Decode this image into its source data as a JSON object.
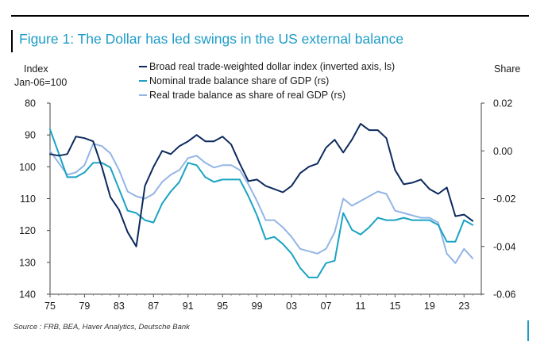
{
  "title": "Figure 1: The Dollar has led swings in the US external balance",
  "source": "Source : FRB, BEA, Haver Analytics, Deutsche Bank",
  "chart_data": {
    "type": "line",
    "left_axis": {
      "label_line1": "Index",
      "label_line2": "Jan-06=100",
      "inverted": true,
      "range": [
        80,
        140
      ],
      "ticks": [
        "80",
        "90",
        "100",
        "110",
        "120",
        "130",
        "140"
      ],
      "tick_values": [
        80,
        90,
        100,
        110,
        120,
        130,
        140
      ]
    },
    "right_axis": {
      "label": "Share",
      "range": [
        -0.06,
        0.02
      ],
      "ticks": [
        "0.02",
        "0.00",
        "-0.02",
        "-0.04",
        "-0.06"
      ],
      "tick_values": [
        0.02,
        0.0,
        -0.02,
        -0.04,
        -0.06
      ]
    },
    "x_axis": {
      "range": [
        1975,
        2025
      ],
      "ticks": [
        "75",
        "79",
        "83",
        "87",
        "91",
        "95",
        "99",
        "03",
        "07",
        "11",
        "15",
        "19",
        "23"
      ],
      "tick_values": [
        1975,
        1979,
        1983,
        1987,
        1991,
        1995,
        1999,
        2003,
        2007,
        2011,
        2015,
        2019,
        2023
      ]
    },
    "series": [
      {
        "name": "Broad real trade-weighted dollar index (inverted axis, ls)",
        "axis": "left",
        "color": "#0c2a5e",
        "x": [
          1975,
          1976,
          1977,
          1978,
          1979,
          1980,
          1981,
          1982,
          1983,
          1984,
          1985,
          1986,
          1987,
          1988,
          1989,
          1990,
          1991,
          1992,
          1993,
          1994,
          1995,
          1996,
          1997,
          1998,
          1999,
          2000,
          2001,
          2002,
          2003,
          2004,
          2005,
          2006,
          2007,
          2008,
          2009,
          2010,
          2011,
          2012,
          2013,
          2014,
          2015,
          2016,
          2017,
          2018,
          2019,
          2020,
          2021,
          2022,
          2023,
          2024
        ],
        "values": [
          96,
          96.5,
          96,
          90.5,
          91,
          92,
          100,
          109.5,
          113.5,
          120.5,
          125,
          106,
          100,
          95,
          96,
          93.5,
          92,
          90,
          92,
          92,
          90.5,
          93,
          99,
          104.5,
          104,
          106,
          107,
          108,
          106,
          102,
          100,
          99,
          94,
          91.5,
          95.5,
          91.5,
          86.5,
          88.5,
          88.5,
          91,
          101,
          105.5,
          105,
          104,
          107,
          108.5,
          106.5,
          115.5,
          115,
          117
        ]
      },
      {
        "name": "Nominal trade balance share of GDP (rs)",
        "axis": "right",
        "color": "#1aa3c3",
        "x": [
          1975,
          1976,
          1977,
          1978,
          1979,
          1980,
          1981,
          1982,
          1983,
          1984,
          1985,
          1986,
          1987,
          1988,
          1989,
          1990,
          1991,
          1992,
          1993,
          1994,
          1995,
          1996,
          1997,
          1998,
          1999,
          2000,
          2001,
          2002,
          2003,
          2004,
          2005,
          2006,
          2007,
          2008,
          2009,
          2010,
          2011,
          2012,
          2013,
          2014,
          2015,
          2016,
          2017,
          2018,
          2019,
          2020,
          2021,
          2022,
          2023,
          2024
        ],
        "values": [
          0.009,
          -0.001,
          -0.011,
          -0.011,
          -0.009,
          -0.005,
          -0.005,
          -0.007,
          -0.016,
          -0.025,
          -0.026,
          -0.029,
          -0.03,
          -0.022,
          -0.017,
          -0.013,
          -0.005,
          -0.006,
          -0.011,
          -0.013,
          -0.012,
          -0.012,
          -0.012,
          -0.019,
          -0.027,
          -0.037,
          -0.036,
          -0.039,
          -0.043,
          -0.049,
          -0.053,
          -0.053,
          -0.047,
          -0.046,
          -0.026,
          -0.033,
          -0.035,
          -0.032,
          -0.028,
          -0.029,
          -0.029,
          -0.028,
          -0.029,
          -0.029,
          -0.029,
          -0.031,
          -0.038,
          -0.038,
          -0.029,
          -0.031
        ]
      },
      {
        "name": "Real trade balance as share of real GDP (rs)",
        "axis": "right",
        "color": "#93b5e6",
        "x": [
          1975,
          1976,
          1977,
          1978,
          1979,
          1980,
          1981,
          1982,
          1983,
          1984,
          1985,
          1986,
          1987,
          1988,
          1989,
          1990,
          1991,
          1992,
          1993,
          1994,
          1995,
          1996,
          1997,
          1998,
          1999,
          2000,
          2001,
          2002,
          2003,
          2004,
          2005,
          2006,
          2007,
          2008,
          2009,
          2010,
          2011,
          2012,
          2013,
          2014,
          2015,
          2016,
          2017,
          2018,
          2019,
          2020,
          2021,
          2022,
          2023,
          2024
        ],
        "values": [
          0.0,
          -0.005,
          -0.01,
          -0.009,
          -0.006,
          0.003,
          0.002,
          -0.001,
          -0.008,
          -0.017,
          -0.019,
          -0.02,
          -0.018,
          -0.013,
          -0.01,
          -0.008,
          -0.003,
          -0.002,
          -0.005,
          -0.007,
          -0.006,
          -0.006,
          -0.008,
          -0.014,
          -0.021,
          -0.029,
          -0.029,
          -0.032,
          -0.036,
          -0.041,
          -0.042,
          -0.043,
          -0.041,
          -0.034,
          -0.02,
          -0.023,
          -0.021,
          -0.019,
          -0.017,
          -0.018,
          -0.025,
          -0.026,
          -0.027,
          -0.028,
          -0.028,
          -0.03,
          -0.043,
          -0.047,
          -0.041,
          -0.045
        ]
      }
    ],
    "grid": false,
    "legend_placement": "top-left"
  }
}
